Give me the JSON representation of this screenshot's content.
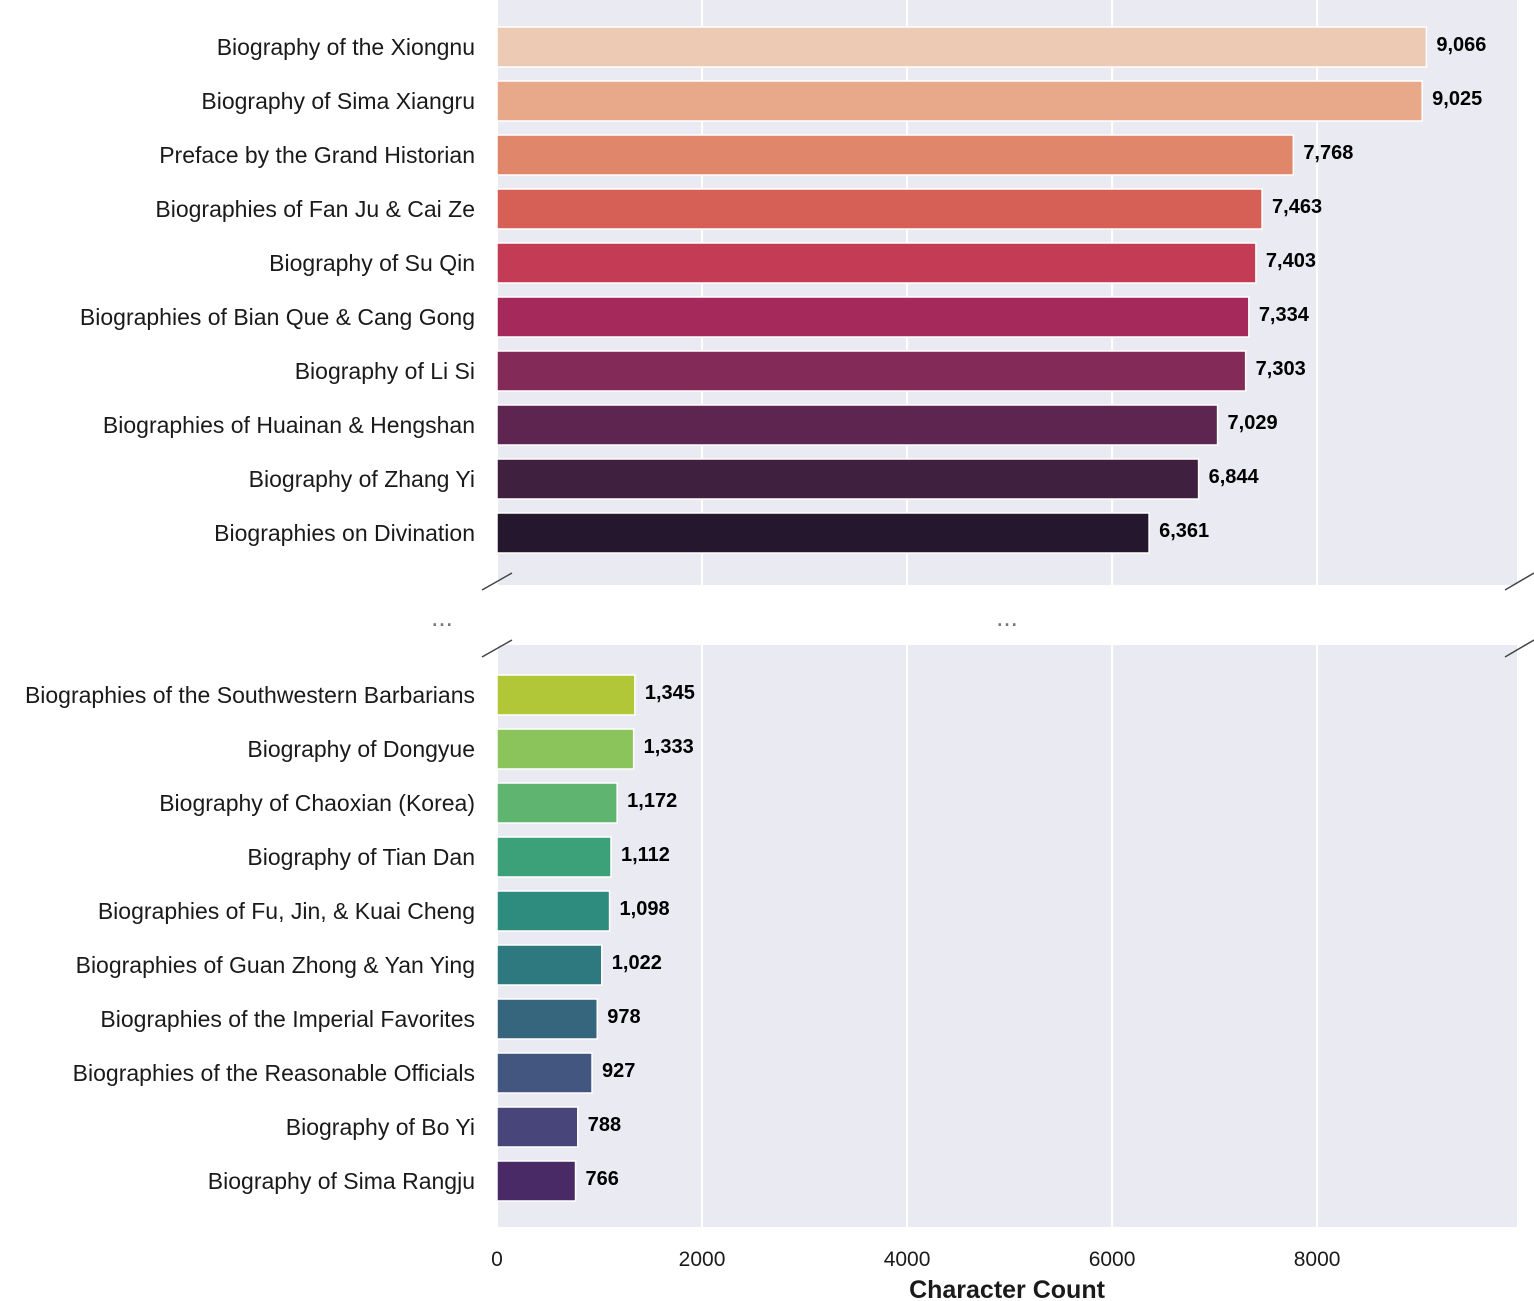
{
  "chart_data": {
    "type": "bar",
    "orientation": "horizontal",
    "broken_axis": true,
    "title": "",
    "xlabel": "Character Count",
    "ylabel": "",
    "xlim": [
      0,
      9950
    ],
    "x_ticks": [
      0,
      2000,
      4000,
      6000,
      8000
    ],
    "x_tick_labels": [
      "0",
      "2000",
      "4000",
      "6000",
      "8000"
    ],
    "grid": true,
    "break_marker": "...",
    "panels": [
      {
        "name": "longest",
        "categories": [
          "Biography of the Xiongnu",
          "Biography of Sima Xiangru",
          "Preface by the Grand Historian",
          "Biographies of Fan Ju & Cai Ze",
          "Biography of Su Qin",
          "Biographies of Bian Que & Cang Gong",
          "Biography of Li Si",
          "Biographies of Huainan & Hengshan",
          "Biography of Zhang Yi",
          "Biographies on Divination"
        ],
        "values": [
          9066,
          9025,
          7768,
          7463,
          7403,
          7334,
          7303,
          7029,
          6844,
          6361
        ],
        "value_labels": [
          "9,066",
          "9,025",
          "7,768",
          "7,463",
          "7,403",
          "7,334",
          "7,303",
          "7,029",
          "6,844",
          "6,361"
        ],
        "colors": [
          "#edcab4",
          "#e8a98a",
          "#e0876b",
          "#d66055",
          "#c43b55",
          "#a5295b",
          "#842a58",
          "#5e2550",
          "#40203f",
          "#25172d"
        ]
      },
      {
        "name": "shortest",
        "categories": [
          "Biographies of the Southwestern Barbarians",
          "Biography of Dongyue",
          "Biography of Chaoxian (Korea)",
          "Biography of Tian Dan",
          "Biographies of Fu, Jin, & Kuai Cheng",
          "Biographies of Guan Zhong & Yan Ying",
          "Biographies of the Imperial Favorites",
          "Biographies of the Reasonable Officials",
          "Biography of Bo Yi",
          "Biography of Sima Rangju"
        ],
        "values": [
          1345,
          1333,
          1172,
          1112,
          1098,
          1022,
          978,
          927,
          788,
          766
        ],
        "value_labels": [
          "1,345",
          "1,333",
          "1,172",
          "1,112",
          "1,098",
          "1,022",
          "978",
          "927",
          "788",
          "766"
        ],
        "colors": [
          "#b1c738",
          "#8ac45a",
          "#5fb570",
          "#3ca179",
          "#2d8c7e",
          "#2e787f",
          "#36667e",
          "#425680",
          "#48457a",
          "#4a2a66"
        ]
      }
    ]
  }
}
